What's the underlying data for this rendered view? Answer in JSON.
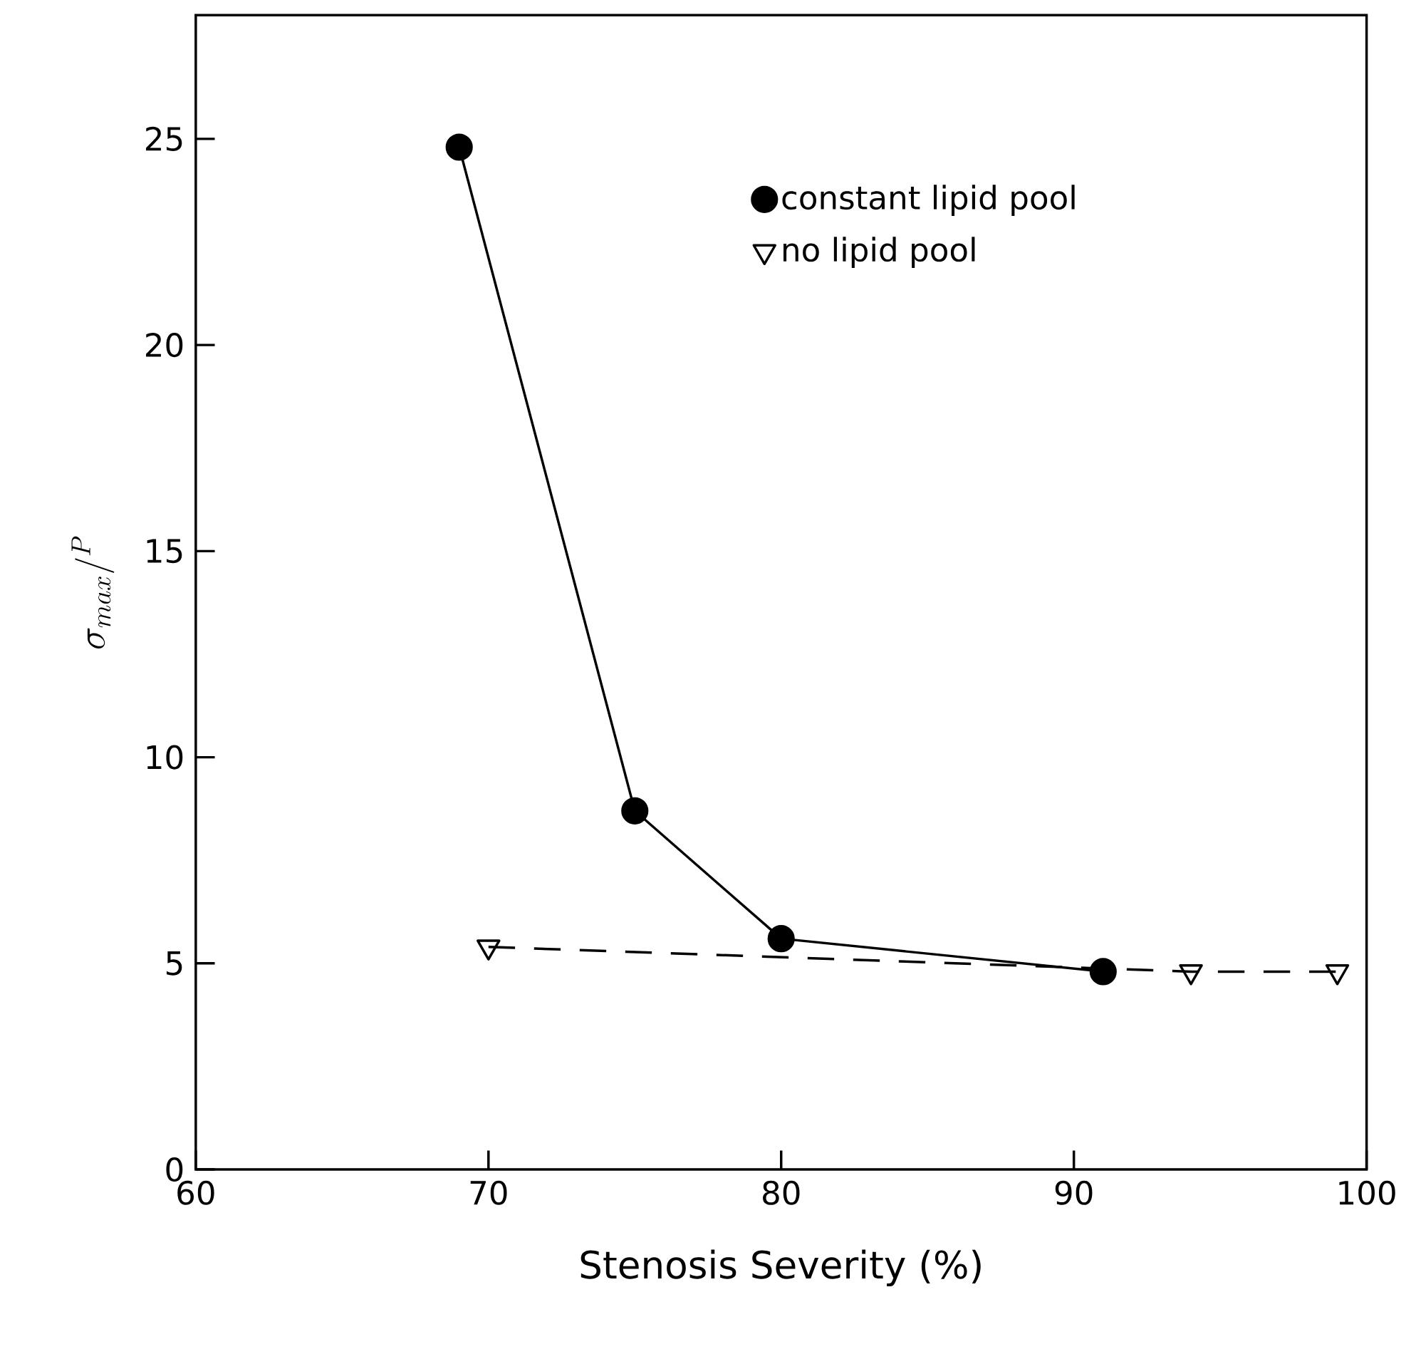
{
  "chart_data": {
    "type": "line",
    "xlabel": "Stenosis Severity (%)",
    "ylabel": "\\sigma_{max}/^{P}",
    "xlim": [
      60,
      100
    ],
    "xticks": [
      60,
      70,
      80,
      90,
      100
    ],
    "ylim": [
      0,
      28
    ],
    "yticks": [
      0,
      5,
      10,
      15,
      20,
      25
    ],
    "legend": "top right",
    "grid": false,
    "series": [
      {
        "name": "constant lipid pool",
        "color": "#000000",
        "marker": "circle",
        "line_style": "solid",
        "x": [
          69,
          75,
          80,
          91
        ],
        "values": [
          24.8,
          8.7,
          5.6,
          4.8
        ]
      },
      {
        "name": "no lipid pool",
        "color": "#000000",
        "marker": "triangle",
        "line_style": "dashed",
        "x": [
          70,
          94,
          99
        ],
        "values": [
          5.4,
          4.8,
          4.8
        ]
      }
    ]
  }
}
